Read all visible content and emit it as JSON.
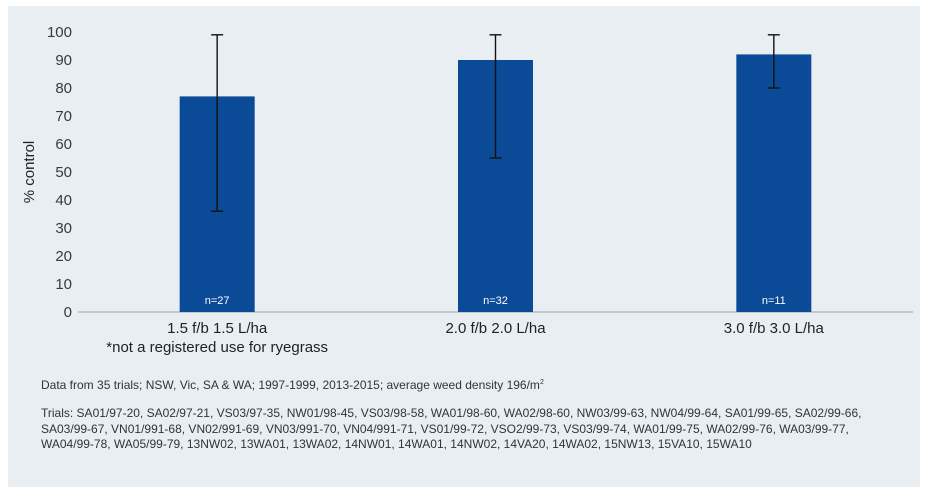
{
  "chart_data": {
    "type": "bar",
    "ylabel": "% control",
    "ylim": [
      0,
      100
    ],
    "yticks": [
      0,
      10,
      20,
      30,
      40,
      50,
      60,
      70,
      80,
      90,
      100
    ],
    "categories": [
      "1.5 f/b 1.5 L/ha",
      "2.0 f/b 2.0 L/ha",
      "3.0 f/b 3.0 L/ha"
    ],
    "category_notes": [
      "*not a registered use for ryegrass",
      "",
      ""
    ],
    "values": [
      77,
      90,
      92
    ],
    "error_low": [
      36,
      55,
      80
    ],
    "error_high": [
      99,
      99,
      99
    ],
    "sample_sizes": [
      "n=27",
      "n=32",
      "n=11"
    ],
    "bar_color": "#0a4a97",
    "grid": false
  },
  "notes": {
    "source_text": "Data from 35 trials; NSW, Vic, SA & WA; 1997-1999, 2013-2015; average weed density 196/m",
    "source_superscript": "2",
    "trials_text": "Trials: SA01/97-20, SA02/97-21, VS03/97-35, NW01/98-45, VS03/98-58, WA01/98-60, WA02/98-60, NW03/99-63, NW04/99-64, SA01/99-65, SA02/99-66, SA03/99-67, VN01/991-68, VN02/991-69, VN03/991-70, VN04/991-71, VS01/99-72, VSO2/99-73, VS03/99-74, WA01/99-75, WA02/99-76, WA03/99-77, WA04/99-78, WA05/99-79, 13NW02, 13WA01, 13WA02, 14NW01, 14WA01, 14NW02, 14VA20, 14WA02, 15NW13, 15VA10, 15WA10"
  }
}
